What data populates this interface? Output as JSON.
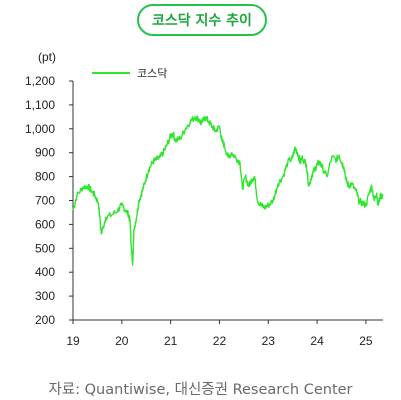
{
  "title": "코스닥 지수 추이",
  "source": "자료: Quantiwise, 대신증권 Research Center",
  "accent_color": "#27c24c",
  "line_color": "#2ee62e",
  "chart_data": {
    "type": "line",
    "unit": "(pt)",
    "yticks": [
      "1,200",
      "1,100",
      "1,000",
      "900",
      "800",
      "700",
      "600",
      "500",
      "400",
      "300",
      "200"
    ],
    "xticks": [
      "19",
      "20",
      "21",
      "22",
      "23",
      "24",
      "25"
    ],
    "ylim": [
      200,
      1200
    ],
    "xlim": [
      2019.0,
      2025.35
    ],
    "legend": "top-left",
    "series": [
      {
        "name": "코스닥",
        "x": [
          2019.0,
          2019.08,
          2019.2,
          2019.3,
          2019.38,
          2019.45,
          2019.52,
          2019.58,
          2019.67,
          2019.8,
          2019.92,
          2020.0,
          2020.08,
          2020.14,
          2020.17,
          2020.19,
          2020.22,
          2020.25,
          2020.3,
          2020.35,
          2020.42,
          2020.48,
          2020.55,
          2020.63,
          2020.7,
          2020.78,
          2020.85,
          2020.92,
          2021.0,
          2021.05,
          2021.1,
          2021.2,
          2021.3,
          2021.4,
          2021.5,
          2021.58,
          2021.63,
          2021.7,
          2021.78,
          2021.85,
          2021.92,
          2022.0,
          2022.05,
          2022.1,
          2022.18,
          2022.25,
          2022.33,
          2022.42,
          2022.47,
          2022.53,
          2022.6,
          2022.67,
          2022.72,
          2022.78,
          2022.85,
          2022.92,
          2023.0,
          2023.1,
          2023.2,
          2023.3,
          2023.4,
          2023.5,
          2023.55,
          2023.6,
          2023.65,
          2023.7,
          2023.78,
          2023.83,
          2023.9,
          2023.95,
          2024.0,
          2024.05,
          2024.1,
          2024.2,
          2024.3,
          2024.4,
          2024.45,
          2024.5,
          2024.55,
          2024.6,
          2024.65,
          2024.7,
          2024.8,
          2024.85,
          2024.92,
          2025.0,
          2025.08,
          2025.12,
          2025.17,
          2025.22,
          2025.25,
          2025.3,
          2025.35
        ],
        "values": [
          660,
          720,
          755,
          760,
          740,
          720,
          690,
          560,
          630,
          640,
          660,
          680,
          660,
          640,
          610,
          520,
          430,
          580,
          630,
          700,
          740,
          780,
          830,
          860,
          870,
          880,
          900,
          930,
          970,
          980,
          950,
          960,
          1000,
          1030,
          1050,
          1040,
          1020,
          1050,
          1030,
          1010,
          990,
          1010,
          950,
          930,
          880,
          900,
          880,
          860,
          750,
          800,
          760,
          790,
          800,
          700,
          680,
          670,
          680,
          700,
          770,
          800,
          860,
          880,
          920,
          900,
          860,
          880,
          850,
          760,
          810,
          830,
          850,
          860,
          840,
          800,
          880,
          870,
          890,
          860,
          840,
          780,
          760,
          770,
          740,
          700,
          690,
          680,
          740,
          760,
          700,
          730,
          680,
          720,
          720
        ]
      }
    ]
  }
}
